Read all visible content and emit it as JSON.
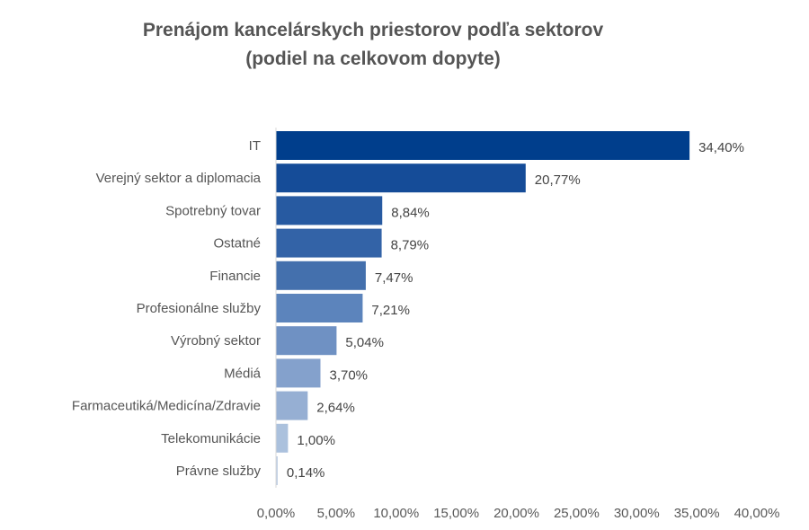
{
  "chart_data": {
    "type": "bar",
    "orientation": "horizontal",
    "title": "Prenájom kancelárskych priestorov podľa sektorov",
    "subtitle": "(podiel na celkovom dopyte)",
    "categories": [
      "IT",
      "Verejný sektor a diplomacia",
      "Spotrebný tovar",
      "Ostatné",
      "Financie",
      "Profesionálne služby",
      "Výrobný sektor",
      "Médiá",
      "Farmaceutiká/Medicína/Zdravie",
      "Telekomunikácie",
      "Právne služby"
    ],
    "values": [
      34.4,
      20.77,
      8.84,
      8.79,
      7.47,
      7.21,
      5.04,
      3.7,
      2.64,
      1.0,
      0.14
    ],
    "value_labels": [
      "34,40%",
      "20,77%",
      "8,84%",
      "8,79%",
      "7,47%",
      "7,21%",
      "5,04%",
      "3,70%",
      "2,64%",
      "1,00%",
      "0,14%"
    ],
    "xlim": [
      0,
      40
    ],
    "x_ticks": [
      0,
      5,
      10,
      15,
      20,
      25,
      30,
      35,
      40
    ],
    "x_tick_labels": [
      "0,00%",
      "5,00%",
      "10,00%",
      "15,00%",
      "20,00%",
      "25,00%",
      "30,00%",
      "35,00%",
      "40,00%"
    ],
    "bar_colors": [
      "#003E8C",
      "#154C98",
      "#275AA1",
      "#3363A7",
      "#4470AD",
      "#5C84BC",
      "#6F91C3",
      "#84A1CC",
      "#96AFD3",
      "#ABC1DD",
      "#BCCBE2"
    ],
    "grid": false,
    "legend": "none"
  }
}
